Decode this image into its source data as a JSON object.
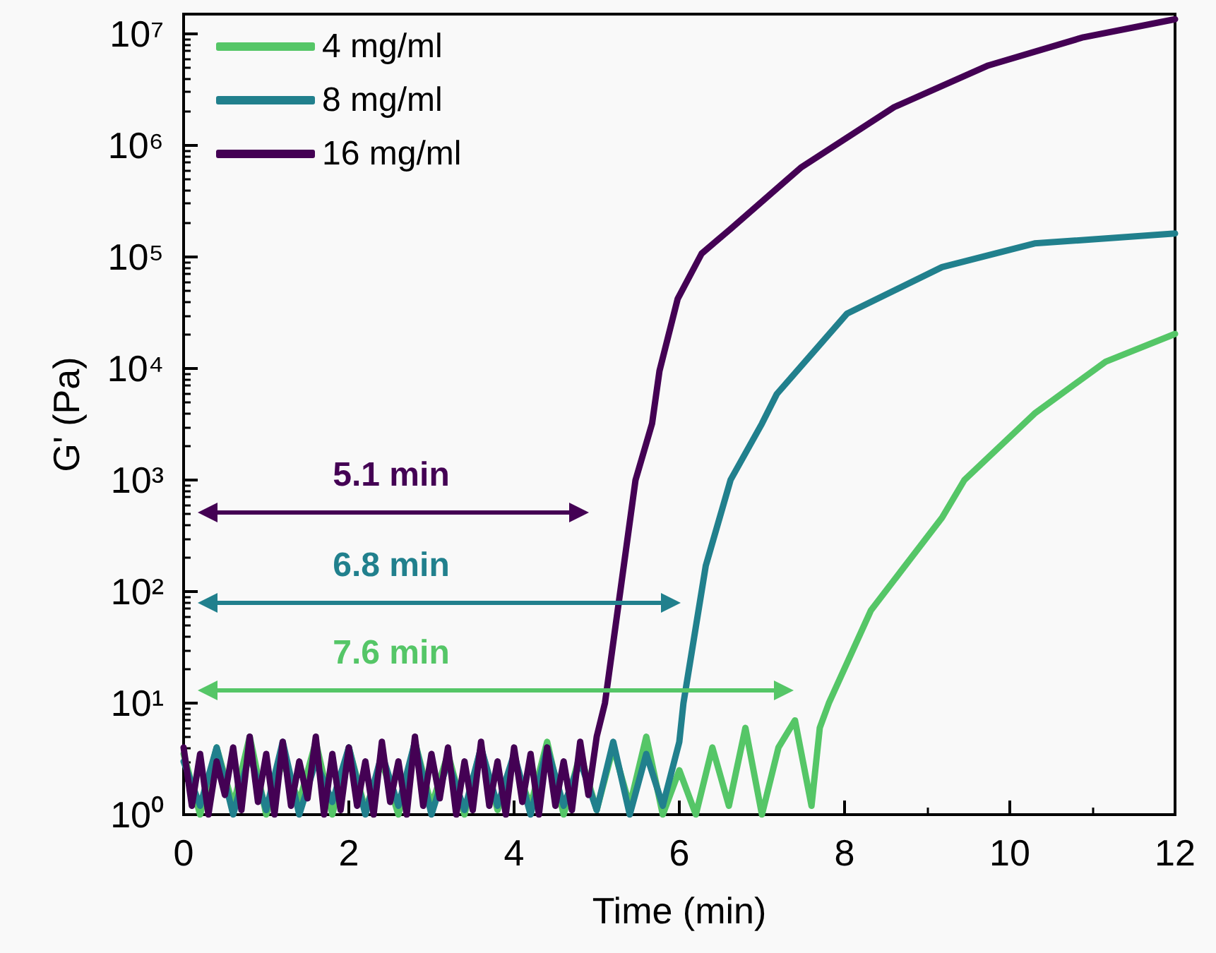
{
  "chart_data": {
    "type": "line",
    "xlabel": "Time (min)",
    "ylabel": "G' (Pa)",
    "xlim": [
      0,
      12
    ],
    "xticks": [
      0,
      2,
      4,
      6,
      8,
      10,
      12
    ],
    "ylim": [
      1,
      15000000
    ],
    "yticks": [
      {
        "value": 1,
        "label": "10⁰"
      },
      {
        "value": 10,
        "label": "10¹"
      },
      {
        "value": 100,
        "label": "10²"
      },
      {
        "value": 1000,
        "label": "10³"
      },
      {
        "value": 10000,
        "label": "10⁴"
      },
      {
        "value": 100000,
        "label": "10⁵"
      },
      {
        "value": 1000000,
        "label": "10⁶"
      },
      {
        "value": 10000000,
        "label": "10⁷"
      }
    ],
    "log": "y",
    "grid": false,
    "legend": "top left",
    "marker": "none",
    "line_style": "solid",
    "series": [
      {
        "name": "4 mg/ml",
        "color": "#55c667",
        "x": [
          0,
          0.2,
          0.4,
          0.6,
          0.8,
          1,
          1.2,
          1.4,
          1.6,
          1.8,
          2,
          2.2,
          2.4,
          2.6,
          2.8,
          3,
          3.2,
          3.4,
          3.6,
          3.8,
          4,
          4.2,
          4.4,
          4.6,
          4.8,
          5,
          5.2,
          5.4,
          5.6,
          5.8,
          6,
          6.2,
          6.4,
          6.6,
          6.8,
          7,
          7.2,
          7.4,
          7.6,
          7.7,
          7.81,
          8.32,
          9.18,
          9.45,
          10.31,
          11.16,
          12
        ],
        "values": [
          3.5,
          1,
          4,
          1.2,
          5,
          1,
          3,
          1.3,
          4.5,
          1,
          4,
          1.1,
          3,
          1,
          4.5,
          1.2,
          3.5,
          1,
          4,
          1.1,
          3,
          1.2,
          4.5,
          1,
          3.5,
          1.1,
          4,
          1.2,
          5,
          1,
          2.5,
          1,
          4,
          1.2,
          6,
          1,
          4,
          7,
          1.2,
          6,
          10,
          68,
          460,
          1000,
          4000,
          11500,
          20400
        ]
      },
      {
        "name": "8 mg/ml",
        "color": "#21808d",
        "x": [
          0,
          0.2,
          0.4,
          0.6,
          0.8,
          1,
          1.2,
          1.4,
          1.6,
          1.8,
          2,
          2.2,
          2.4,
          2.6,
          2.8,
          3,
          3.2,
          3.4,
          3.6,
          3.8,
          4,
          4.2,
          4.4,
          4.6,
          4.8,
          5,
          5.2,
          5.4,
          5.6,
          5.8,
          6,
          6.05,
          6.32,
          6.62,
          7,
          7.18,
          8.03,
          9.18,
          10.3,
          12
        ],
        "values": [
          3,
          1.2,
          4,
          1,
          3.5,
          1.1,
          4.5,
          1,
          3,
          1.3,
          4,
          1,
          3.5,
          1.2,
          4.5,
          1,
          3,
          1.1,
          4,
          1.2,
          3.5,
          1,
          4,
          1.2,
          3,
          1.1,
          4.5,
          1,
          3.5,
          1.2,
          4.5,
          10,
          170,
          1000,
          3200,
          5900,
          31000,
          81000,
          132000,
          162000
        ]
      },
      {
        "name": "16 mg/ml",
        "color": "#440154",
        "x": [
          0,
          0.1,
          0.2,
          0.3,
          0.4,
          0.5,
          0.6,
          0.7,
          0.8,
          0.9,
          1,
          1.1,
          1.2,
          1.3,
          1.4,
          1.5,
          1.6,
          1.7,
          1.8,
          1.9,
          2,
          2.1,
          2.2,
          2.3,
          2.4,
          2.5,
          2.6,
          2.7,
          2.8,
          2.9,
          3,
          3.1,
          3.2,
          3.3,
          3.4,
          3.5,
          3.6,
          3.7,
          3.8,
          3.9,
          4,
          4.1,
          4.2,
          4.3,
          4.4,
          4.5,
          4.6,
          4.7,
          4.8,
          4.9,
          5,
          5.1,
          5.3,
          5.47,
          5.67,
          5.76,
          5.98,
          6.27,
          6.62,
          7.47,
          8.6,
          9.74,
          10.89,
          12
        ],
        "values": [
          4,
          1.2,
          3.5,
          1,
          3,
          1.5,
          4,
          1.1,
          5,
          1.3,
          3.5,
          1,
          4.5,
          1.2,
          3,
          1.4,
          5,
          1,
          3.5,
          1.1,
          4,
          1.2,
          3,
          1,
          4.5,
          1.3,
          3,
          1,
          5,
          1.2,
          3.5,
          1.4,
          4,
          1,
          3,
          1.1,
          4.5,
          1.2,
          3,
          1,
          4,
          1.3,
          3.5,
          1,
          4,
          1.2,
          3,
          1.1,
          4.5,
          1.5,
          5,
          10,
          120,
          1000,
          3200,
          9500,
          42000,
          107000,
          178000,
          630000,
          2200000,
          5200000,
          9300000,
          13500000
        ]
      }
    ],
    "annotations": [
      "7.6 min",
      "6.8 min",
      "5.1 min"
    ]
  }
}
